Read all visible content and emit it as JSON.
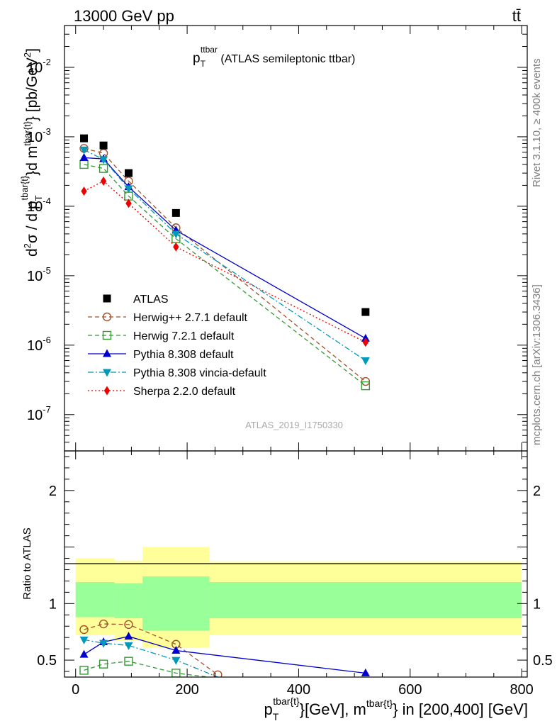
{
  "header": {
    "energy_label": "13000 GeV pp",
    "process_label": "tt̄"
  },
  "side_text": {
    "rivet": "Rivet 3.1.10, ≥ 400k events",
    "mcplots": "mcplots.cern.ch [arXiv:1306.3436]"
  },
  "plot_title": {
    "main": "p",
    "sub": "T",
    "sup": "ttbar",
    "rest": " (ATLAS semileptonic ttbar)"
  },
  "watermark": "ATLAS_2019_I1750330",
  "upper_ylabel": "d²σ / d p_T^{tbar{t}}d m^{tbar{t}} [pb/GeV²]",
  "lower_ylabel": "Ratio to ATLAS",
  "xlabel": "p_T^{tbar{t}}[GeV], m^{tbar{t}} in [200,400] [GeV]",
  "colors": {
    "atlas": "#000000",
    "herwigpp": "#a0522d",
    "herwig7": "#339933",
    "pythia": "#0000cc",
    "vincia": "#0099bb",
    "sherpa": "#ee0000",
    "band_inner": "#99ff99",
    "band_outer": "#ffff99"
  },
  "chart_data": [
    {
      "type": "scatter",
      "panel": "upper",
      "log_y": true,
      "xlim": [
        -20,
        810
      ],
      "ylim": [
        3e-08,
        0.04
      ],
      "x_ticks": [
        0,
        200,
        400,
        600,
        800
      ],
      "y_ticks": [
        {
          "value": 1e-07,
          "label": "10",
          "exp": "-7"
        },
        {
          "value": 1e-06,
          "label": "10",
          "exp": "-6"
        },
        {
          "value": 1e-05,
          "label": "10",
          "exp": "-5"
        },
        {
          "value": 0.0001,
          "label": "10",
          "exp": "-4"
        },
        {
          "value": 0.001,
          "label": "10",
          "exp": "-3"
        },
        {
          "value": 0.01,
          "label": "10",
          "exp": "-2"
        }
      ],
      "legend_position": "bottom-left",
      "series": [
        {
          "key": "atlas",
          "name": "ATLAS",
          "marker": "square-filled",
          "line": "none",
          "x": [
            15,
            50,
            95,
            180,
            520
          ],
          "y": [
            0.00095,
            0.00075,
            0.0003,
            8e-05,
            3e-06
          ]
        },
        {
          "key": "herwigpp",
          "name": "Herwig++ 2.7.1 default",
          "marker": "circle-open",
          "line": "dashed",
          "x": [
            15,
            50,
            95,
            180,
            520
          ],
          "y": [
            0.00068,
            0.00058,
            0.00023,
            4.9e-05,
            3e-07
          ]
        },
        {
          "key": "herwig7",
          "name": "Herwig 7.2.1 default",
          "marker": "square-open",
          "line": "dashed",
          "x": [
            15,
            50,
            95,
            180,
            520
          ],
          "y": [
            0.0004,
            0.00035,
            0.00014,
            3.4e-05,
            2.6e-07
          ]
        },
        {
          "key": "pythia",
          "name": "Pythia 8.308 default",
          "marker": "triangle-up",
          "line": "solid",
          "x": [
            15,
            50,
            95,
            180,
            520
          ],
          "y": [
            0.0005,
            0.00048,
            0.00019,
            4.5e-05,
            1.25e-06
          ]
        },
        {
          "key": "vincia",
          "name": "Pythia 8.308 vincia-default",
          "marker": "triangle-down",
          "line": "dashdot",
          "x": [
            15,
            50,
            95,
            180,
            520
          ],
          "y": [
            0.00065,
            0.00047,
            0.00018,
            4e-05,
            6e-07
          ]
        },
        {
          "key": "sherpa",
          "name": "Sherpa 2.2.0 default",
          "marker": "diamond",
          "line": "dotted",
          "x": [
            15,
            50,
            95,
            180,
            520
          ],
          "y": [
            0.000165,
            0.00023,
            0.00011,
            2.6e-05,
            1.1e-06
          ]
        }
      ]
    },
    {
      "type": "line",
      "panel": "lower",
      "xlim": [
        -20,
        810
      ],
      "ylim": [
        0.35,
        2.35
      ],
      "y_ticks": [
        {
          "value": 0.5,
          "label": "0.5"
        },
        {
          "value": 1,
          "label": "1"
        },
        {
          "value": 2,
          "label": "2"
        }
      ],
      "bands": {
        "x_edges": [
          0,
          70,
          120,
          240,
          800
        ],
        "inner_lo": [
          0.88,
          0.87,
          0.76,
          0.87,
          0.87
        ],
        "inner_hi": [
          1.19,
          1.18,
          1.24,
          1.19,
          1.19
        ],
        "outer_lo": [
          0.72,
          0.67,
          0.61,
          0.72,
          0.73
        ],
        "outer_hi": [
          1.4,
          1.38,
          1.5,
          1.37,
          1.4
        ]
      },
      "series": [
        {
          "key": "herwigpp",
          "x": [
            15,
            50,
            95,
            180,
            255
          ],
          "y": [
            0.77,
            0.82,
            0.815,
            0.64,
            0.37
          ],
          "marker": "circle-open",
          "line": "dashed"
        },
        {
          "key": "herwig7",
          "x": [
            15,
            50,
            95,
            180,
            255
          ],
          "y": [
            0.41,
            0.465,
            0.49,
            0.385,
            0.34
          ],
          "marker": "square-open",
          "line": "dashed"
        },
        {
          "key": "pythia",
          "x": [
            15,
            50,
            95,
            180,
            520
          ],
          "y": [
            0.55,
            0.66,
            0.71,
            0.585,
            0.385
          ],
          "marker": "triangle-up",
          "line": "solid"
        },
        {
          "key": "vincia",
          "x": [
            15,
            50,
            95,
            180,
            255
          ],
          "y": [
            0.68,
            0.65,
            0.63,
            0.5,
            0.35
          ],
          "marker": "triangle-down",
          "line": "dashdot"
        }
      ]
    }
  ]
}
